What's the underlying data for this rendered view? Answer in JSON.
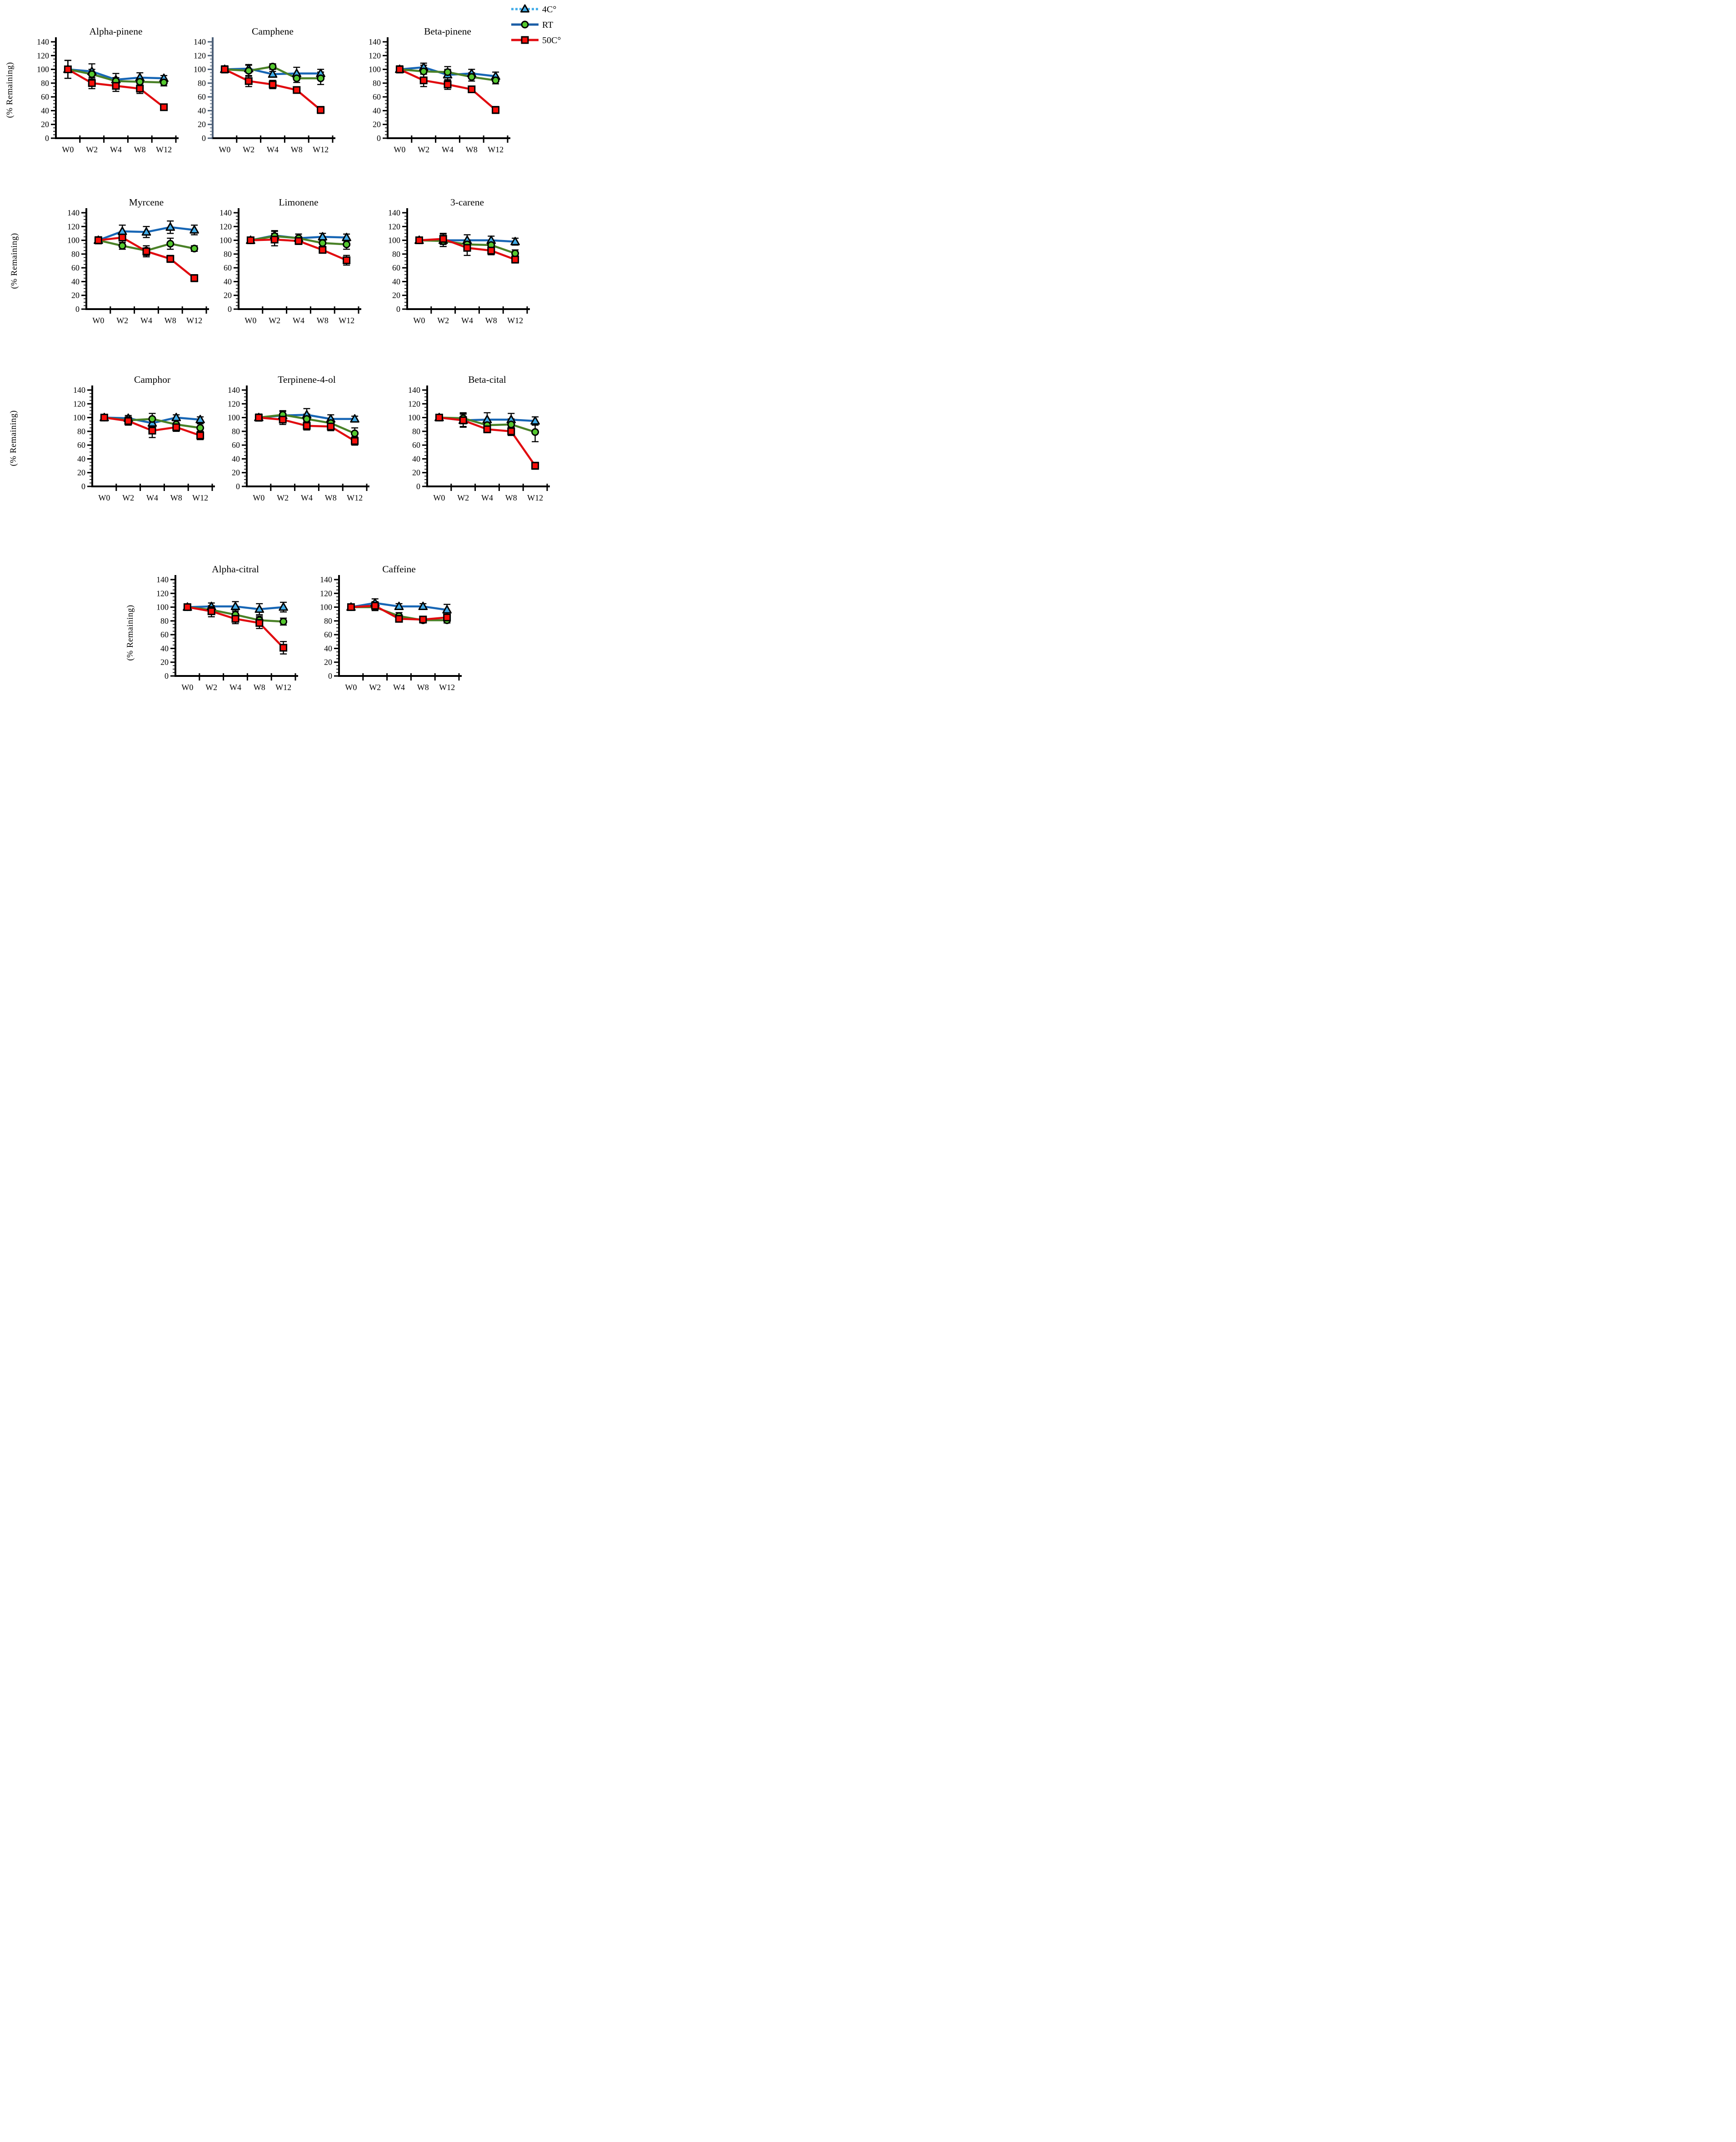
{
  "figure": {
    "ylabel": "(% Remaining)",
    "background": "#ffffff"
  },
  "legend": {
    "position": "top-right",
    "items": [
      {
        "label": "4C°",
        "marker": "triangle",
        "marker_color": "#41ACE8",
        "line_color": "#41ACE8",
        "line_style": "dotted"
      },
      {
        "label": "RT",
        "marker": "circle",
        "marker_color": "#55C82F",
        "line_color": "#1B5EA6",
        "line_style": "solid"
      },
      {
        "label": "50C°",
        "marker": "square",
        "marker_color": "#FA0F0A",
        "line_color": "#E10A0F",
        "line_style": "solid"
      }
    ]
  },
  "series_styles": {
    "4C°": {
      "line": "#1766B5",
      "marker": "triangle",
      "marker_fill": "#41ACE8"
    },
    "RT": {
      "line": "#4A8127",
      "marker": "circle",
      "marker_fill": "#55C82F"
    },
    "50C°": {
      "line": "#E10A0F",
      "marker": "square",
      "marker_fill": "#FA0F0A"
    }
  },
  "chart_data": [
    {
      "type": "line",
      "title": "Alpha-pinene",
      "categories": [
        "W0",
        "W2",
        "W4",
        "W8",
        "W12"
      ],
      "ylim": [
        0,
        140
      ],
      "ytick_step": 20,
      "yminor_step": 5,
      "axis_color": "#000000",
      "series": [
        {
          "name": "4C°",
          "values": [
            100,
            97,
            85,
            88,
            87
          ],
          "errors": [
            13,
            11,
            9,
            7,
            4
          ]
        },
        {
          "name": "RT",
          "values": [
            100,
            93,
            83,
            82,
            81
          ],
          "errors": [
            13,
            7,
            5,
            5,
            5
          ]
        },
        {
          "name": "50C°",
          "values": [
            100,
            80,
            76,
            72,
            45
          ],
          "errors": [
            13,
            8,
            8,
            7,
            4
          ]
        }
      ]
    },
    {
      "type": "line",
      "title": "Camphene",
      "categories": [
        "W0",
        "W2",
        "W4",
        "W8",
        "W12"
      ],
      "ylim": [
        0,
        140
      ],
      "ytick_step": 20,
      "yminor_step": 5,
      "axis_color": "#4D6078",
      "series": [
        {
          "name": "4C°",
          "values": [
            100,
            101,
            93,
            94,
            94
          ],
          "errors": [
            5,
            6,
            4,
            9,
            6
          ]
        },
        {
          "name": "RT",
          "values": [
            100,
            98,
            104,
            87,
            87
          ],
          "errors": [
            5,
            8,
            4,
            6,
            9
          ]
        },
        {
          "name": "50C°",
          "values": [
            100,
            83,
            78,
            70,
            41
          ],
          "errors": [
            5,
            8,
            6,
            4,
            5
          ]
        }
      ]
    },
    {
      "type": "line",
      "title": "Beta-pinene",
      "categories": [
        "W0",
        "W2",
        "W4",
        "W8",
        "W12"
      ],
      "ylim": [
        0,
        140
      ],
      "ytick_step": 20,
      "yminor_step": 5,
      "axis_color": "#000000",
      "series": [
        {
          "name": "4C°",
          "values": [
            100,
            103,
            92,
            94,
            90
          ],
          "errors": [
            5,
            6,
            8,
            6,
            6
          ]
        },
        {
          "name": "RT",
          "values": [
            100,
            97,
            96,
            89,
            84
          ],
          "errors": [
            5,
            9,
            8,
            6,
            5
          ]
        },
        {
          "name": "50C°",
          "values": [
            100,
            84,
            78,
            71,
            41
          ],
          "errors": [
            5,
            9,
            7,
            4,
            5
          ]
        }
      ]
    },
    {
      "type": "line",
      "title": "Myrcene",
      "categories": [
        "W0",
        "W2",
        "W4",
        "W8",
        "W12"
      ],
      "ylim": [
        0,
        140
      ],
      "ytick_step": 20,
      "yminor_step": 5,
      "axis_color": "#000000",
      "series": [
        {
          "name": "4C°",
          "values": [
            100,
            113,
            112,
            119,
            115
          ],
          "errors": [
            5,
            9,
            8,
            9,
            7
          ]
        },
        {
          "name": "RT",
          "values": [
            100,
            92,
            85,
            95,
            88
          ],
          "errors": [
            5,
            5,
            7,
            8,
            4
          ]
        },
        {
          "name": "50C°",
          "values": [
            100,
            104,
            84,
            73,
            45
          ],
          "errors": [
            5,
            7,
            8,
            5,
            5
          ]
        }
      ]
    },
    {
      "type": "line",
      "title": "Limonene",
      "categories": [
        "W0",
        "W2",
        "W4",
        "W8",
        "W12"
      ],
      "ylim": [
        0,
        140
      ],
      "ytick_step": 20,
      "yminor_step": 5,
      "axis_color": "#000000",
      "series": [
        {
          "name": "4C°",
          "values": [
            100,
            107,
            103,
            105,
            104
          ],
          "errors": [
            4,
            7,
            6,
            5,
            5
          ]
        },
        {
          "name": "RT",
          "values": [
            100,
            106,
            103,
            96,
            94
          ],
          "errors": [
            4,
            7,
            6,
            5,
            7
          ]
        },
        {
          "name": "50C°",
          "values": [
            100,
            101,
            99,
            86,
            71
          ],
          "errors": [
            4,
            9,
            5,
            4,
            7
          ]
        }
      ]
    },
    {
      "type": "line",
      "title": "3-carene",
      "categories": [
        "W0",
        "W2",
        "W4",
        "W8",
        "W12"
      ],
      "ylim": [
        0,
        140
      ],
      "ytick_step": 20,
      "yminor_step": 5,
      "axis_color": "#000000",
      "series": [
        {
          "name": "4C°",
          "values": [
            100,
            100,
            100,
            100,
            98
          ],
          "errors": [
            4,
            9,
            8,
            6,
            5
          ]
        },
        {
          "name": "RT",
          "values": [
            100,
            99,
            94,
            93,
            81
          ],
          "errors": [
            4,
            8,
            6,
            6,
            5
          ]
        },
        {
          "name": "50C°",
          "values": [
            100,
            102,
            89,
            85,
            72
          ],
          "errors": [
            4,
            8,
            11,
            6,
            5
          ]
        }
      ]
    },
    {
      "type": "line",
      "title": "Camphor",
      "categories": [
        "W0",
        "W2",
        "W4",
        "W8",
        "W12"
      ],
      "ylim": [
        0,
        140
      ],
      "ytick_step": 20,
      "yminor_step": 5,
      "axis_color": "#000000",
      "series": [
        {
          "name": "4C°",
          "values": [
            100,
            99,
            92,
            100,
            97
          ],
          "errors": [
            3,
            4,
            5,
            4,
            4
          ]
        },
        {
          "name": "RT",
          "values": [
            100,
            96,
            98,
            90,
            85
          ],
          "errors": [
            3,
            5,
            8,
            6,
            6
          ]
        },
        {
          "name": "50C°",
          "values": [
            100,
            95,
            81,
            86,
            74
          ],
          "errors": [
            3,
            6,
            10,
            6,
            6
          ]
        }
      ]
    },
    {
      "type": "line",
      "title": "Terpinene-4-ol",
      "categories": [
        "W0",
        "W2",
        "W4",
        "W8",
        "W12"
      ],
      "ylim": [
        0,
        140
      ],
      "ytick_step": 20,
      "yminor_step": 5,
      "axis_color": "#000000",
      "series": [
        {
          "name": "4C°",
          "values": [
            100,
            103,
            104,
            98,
            98
          ],
          "errors": [
            5,
            6,
            9,
            6,
            4
          ]
        },
        {
          "name": "RT",
          "values": [
            100,
            104,
            98,
            92,
            77
          ],
          "errors": [
            5,
            6,
            7,
            6,
            8
          ]
        },
        {
          "name": "50C°",
          "values": [
            100,
            97,
            88,
            87,
            66
          ],
          "errors": [
            5,
            7,
            6,
            6,
            6
          ]
        }
      ]
    },
    {
      "type": "line",
      "title": "Beta-cital",
      "categories": [
        "W0",
        "W2",
        "W4",
        "W8",
        "W12"
      ],
      "ylim": [
        0,
        140
      ],
      "ytick_step": 20,
      "yminor_step": 5,
      "axis_color": "#000000",
      "series": [
        {
          "name": "4C°",
          "values": [
            100,
            96,
            97,
            97,
            95
          ],
          "errors": [
            4,
            10,
            10,
            9,
            6
          ]
        },
        {
          "name": "RT",
          "values": [
            100,
            99,
            89,
            90,
            79
          ],
          "errors": [
            4,
            8,
            6,
            8,
            14
          ]
        },
        {
          "name": "50C°",
          "values": [
            100,
            96,
            83,
            80,
            30
          ],
          "errors": [
            4,
            9,
            5,
            6,
            5
          ]
        }
      ]
    },
    {
      "type": "line",
      "title": "Alpha-citral",
      "categories": [
        "W0",
        "W2",
        "W4",
        "W8",
        "W12"
      ],
      "ylim": [
        0,
        140
      ],
      "ytick_step": 20,
      "yminor_step": 5,
      "axis_color": "#000000",
      "series": [
        {
          "name": "4C°",
          "values": [
            100,
            101,
            101,
            97,
            100
          ],
          "errors": [
            3,
            5,
            7,
            8,
            7
          ]
        },
        {
          "name": "RT",
          "values": [
            100,
            96,
            89,
            81,
            79
          ],
          "errors": [
            3,
            6,
            7,
            6,
            5
          ]
        },
        {
          "name": "50C°",
          "values": [
            100,
            94,
            83,
            77,
            41
          ],
          "errors": [
            3,
            8,
            7,
            8,
            9
          ]
        }
      ]
    },
    {
      "type": "line",
      "title": "Caffeine",
      "categories": [
        "W0",
        "W2",
        "W4",
        "W8",
        "W12"
      ],
      "ylim": [
        0,
        140
      ],
      "ytick_step": 20,
      "yminor_step": 5,
      "axis_color": "#000000",
      "series": [
        {
          "name": "4C°",
          "values": [
            100,
            106,
            101,
            101,
            96
          ],
          "errors": [
            4,
            6,
            4,
            4,
            8
          ]
        },
        {
          "name": "RT",
          "values": [
            100,
            100,
            87,
            81,
            81
          ],
          "errors": [
            4,
            5,
            5,
            4,
            4
          ]
        },
        {
          "name": "50C°",
          "values": [
            100,
            102,
            83,
            82,
            85
          ],
          "errors": [
            4,
            6,
            4,
            4,
            4
          ]
        }
      ]
    }
  ]
}
